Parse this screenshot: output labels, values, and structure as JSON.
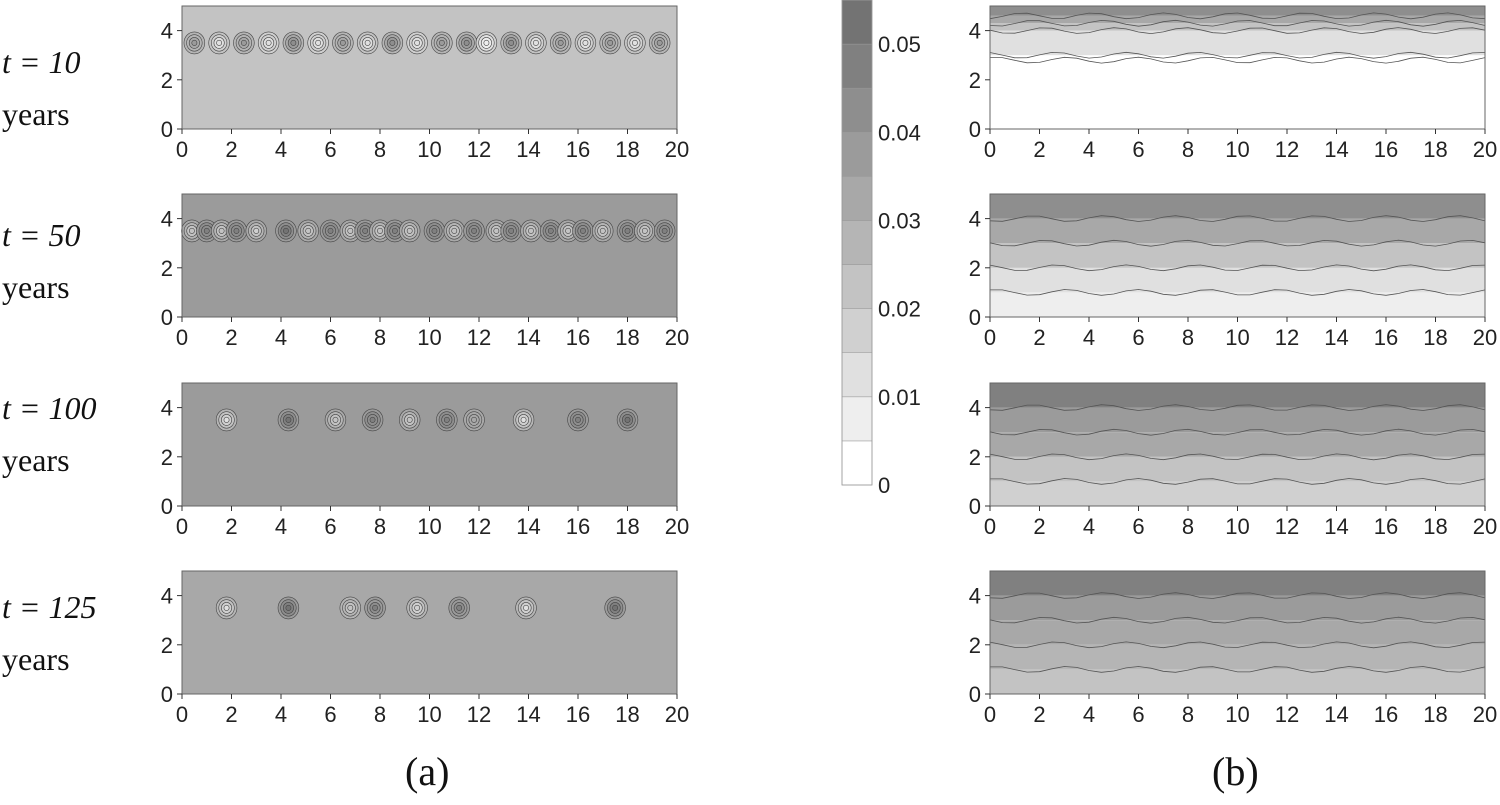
{
  "rows": [
    {
      "time_label": "t = 10",
      "unit_label": "years"
    },
    {
      "time_label": "t = 50",
      "unit_label": "years"
    },
    {
      "time_label": "t = 100",
      "unit_label": "years"
    },
    {
      "time_label": "t = 125",
      "unit_label": "years"
    }
  ],
  "panel_labels": {
    "a": "(a)",
    "b": "(b)"
  },
  "colorbar": {
    "tick_labels": [
      "0.05",
      "0.04",
      "0.03",
      "0.02",
      "0.01",
      "0"
    ],
    "levels": [
      0,
      0.005,
      0.01,
      0.015,
      0.02,
      0.025,
      0.03,
      0.035,
      0.04,
      0.045,
      0.05,
      0.055
    ],
    "colors": [
      "#ffffff",
      "#eeeeee",
      "#e0e0e0",
      "#d0d0d0",
      "#c3c3c3",
      "#b5b5b5",
      "#a8a8a8",
      "#9b9b9b",
      "#8e8e8e",
      "#808080",
      "#737373"
    ]
  },
  "chart_data": [
    {
      "type": "heatmap",
      "panel": "(a)",
      "row": "t = 10 years",
      "xlim": [
        0,
        20
      ],
      "ylim": [
        0,
        5
      ],
      "x_ticks": [
        "0",
        "2",
        "4",
        "6",
        "8",
        "10",
        "12",
        "14",
        "16",
        "18",
        "20"
      ],
      "y_ticks": [
        "0",
        "2",
        "4"
      ],
      "background_value": 0.023,
      "cells": [
        {
          "x": 0.5,
          "y": 3.5,
          "v": 0.035
        },
        {
          "x": 1.5,
          "y": 3.5,
          "v": 0.012
        },
        {
          "x": 2.5,
          "y": 3.5,
          "v": 0.035
        },
        {
          "x": 3.5,
          "y": 3.5,
          "v": 0.01
        },
        {
          "x": 4.5,
          "y": 3.5,
          "v": 0.04
        },
        {
          "x": 5.5,
          "y": 3.5,
          "v": 0.01
        },
        {
          "x": 6.5,
          "y": 3.5,
          "v": 0.035
        },
        {
          "x": 7.5,
          "y": 3.5,
          "v": 0.012
        },
        {
          "x": 8.5,
          "y": 3.5,
          "v": 0.04
        },
        {
          "x": 9.5,
          "y": 3.5,
          "v": 0.01
        },
        {
          "x": 10.5,
          "y": 3.5,
          "v": 0.035
        },
        {
          "x": 11.5,
          "y": 3.5,
          "v": 0.04
        },
        {
          "x": 12.3,
          "y": 3.5,
          "v": 0.005
        },
        {
          "x": 13.3,
          "y": 3.5,
          "v": 0.04
        },
        {
          "x": 14.3,
          "y": 3.5,
          "v": 0.012
        },
        {
          "x": 15.3,
          "y": 3.5,
          "v": 0.035
        },
        {
          "x": 16.3,
          "y": 3.5,
          "v": 0.012
        },
        {
          "x": 17.3,
          "y": 3.5,
          "v": 0.035
        },
        {
          "x": 18.3,
          "y": 3.5,
          "v": 0.012
        },
        {
          "x": 19.3,
          "y": 3.5,
          "v": 0.035
        }
      ]
    },
    {
      "type": "heatmap",
      "panel": "(a)",
      "row": "t = 50 years",
      "xlim": [
        0,
        20
      ],
      "ylim": [
        0,
        5
      ],
      "x_ticks": [
        "0",
        "2",
        "4",
        "6",
        "8",
        "10",
        "12",
        "14",
        "16",
        "18",
        "20"
      ],
      "y_ticks": [
        "0",
        "2",
        "4"
      ],
      "background_value": 0.035,
      "cells": [
        {
          "x": 0.4,
          "y": 3.5,
          "v": 0.02
        },
        {
          "x": 1.0,
          "y": 3.5,
          "v": 0.045
        },
        {
          "x": 1.6,
          "y": 3.5,
          "v": 0.02
        },
        {
          "x": 2.2,
          "y": 3.5,
          "v": 0.045
        },
        {
          "x": 3.0,
          "y": 3.5,
          "v": 0.015
        },
        {
          "x": 4.2,
          "y": 3.5,
          "v": 0.05
        },
        {
          "x": 5.1,
          "y": 3.5,
          "v": 0.02
        },
        {
          "x": 6.0,
          "y": 3.5,
          "v": 0.045
        },
        {
          "x": 6.8,
          "y": 3.5,
          "v": 0.02
        },
        {
          "x": 7.4,
          "y": 3.5,
          "v": 0.045
        },
        {
          "x": 8.0,
          "y": 3.5,
          "v": 0.02
        },
        {
          "x": 8.6,
          "y": 3.5,
          "v": 0.045
        },
        {
          "x": 9.2,
          "y": 3.5,
          "v": 0.02
        },
        {
          "x": 10.2,
          "y": 3.5,
          "v": 0.045
        },
        {
          "x": 11.0,
          "y": 3.5,
          "v": 0.02
        },
        {
          "x": 11.8,
          "y": 3.5,
          "v": 0.045
        },
        {
          "x": 12.7,
          "y": 3.5,
          "v": 0.02
        },
        {
          "x": 13.3,
          "y": 3.5,
          "v": 0.045
        },
        {
          "x": 14.1,
          "y": 3.5,
          "v": 0.02
        },
        {
          "x": 14.9,
          "y": 3.5,
          "v": 0.045
        },
        {
          "x": 15.6,
          "y": 3.5,
          "v": 0.02
        },
        {
          "x": 16.2,
          "y": 3.5,
          "v": 0.045
        },
        {
          "x": 17.0,
          "y": 3.5,
          "v": 0.02
        },
        {
          "x": 18.0,
          "y": 3.5,
          "v": 0.045
        },
        {
          "x": 18.7,
          "y": 3.5,
          "v": 0.02
        },
        {
          "x": 19.5,
          "y": 3.5,
          "v": 0.045
        }
      ]
    },
    {
      "type": "heatmap",
      "panel": "(a)",
      "row": "t = 100 years",
      "xlim": [
        0,
        20
      ],
      "ylim": [
        0,
        5
      ],
      "x_ticks": [
        "0",
        "2",
        "4",
        "6",
        "8",
        "10",
        "12",
        "14",
        "16",
        "18",
        "20"
      ],
      "y_ticks": [
        "0",
        "2",
        "4"
      ],
      "background_value": 0.035,
      "cells": [
        {
          "x": 1.8,
          "y": 3.5,
          "v": 0.012
        },
        {
          "x": 4.3,
          "y": 3.5,
          "v": 0.05
        },
        {
          "x": 6.2,
          "y": 3.5,
          "v": 0.02
        },
        {
          "x": 7.7,
          "y": 3.5,
          "v": 0.045
        },
        {
          "x": 9.2,
          "y": 3.5,
          "v": 0.02
        },
        {
          "x": 10.7,
          "y": 3.5,
          "v": 0.045
        },
        {
          "x": 11.8,
          "y": 3.5,
          "v": 0.03
        },
        {
          "x": 13.8,
          "y": 3.5,
          "v": 0.012
        },
        {
          "x": 16.0,
          "y": 3.5,
          "v": 0.045
        },
        {
          "x": 18.0,
          "y": 3.5,
          "v": 0.05
        }
      ]
    },
    {
      "type": "heatmap",
      "panel": "(a)",
      "row": "t = 125 years",
      "xlim": [
        0,
        20
      ],
      "ylim": [
        0,
        5
      ],
      "x_ticks": [
        "0",
        "2",
        "4",
        "6",
        "8",
        "10",
        "12",
        "14",
        "16",
        "18",
        "20"
      ],
      "y_ticks": [
        "0",
        "2",
        "4"
      ],
      "background_value": 0.033,
      "cells": [
        {
          "x": 1.8,
          "y": 3.5,
          "v": 0.012
        },
        {
          "x": 4.3,
          "y": 3.5,
          "v": 0.05
        },
        {
          "x": 6.8,
          "y": 3.5,
          "v": 0.02
        },
        {
          "x": 7.8,
          "y": 3.5,
          "v": 0.045
        },
        {
          "x": 9.5,
          "y": 3.5,
          "v": 0.015
        },
        {
          "x": 11.2,
          "y": 3.5,
          "v": 0.045
        },
        {
          "x": 13.9,
          "y": 3.5,
          "v": 0.012
        },
        {
          "x": 17.5,
          "y": 3.5,
          "v": 0.055
        }
      ]
    },
    {
      "type": "heatmap",
      "panel": "(b)",
      "row": "t = 10 years",
      "xlim": [
        0,
        20
      ],
      "ylim": [
        0,
        5
      ],
      "x_ticks": [
        "0",
        "2",
        "4",
        "6",
        "8",
        "10",
        "12",
        "14",
        "16",
        "18",
        "20"
      ],
      "y_ticks": [
        "0",
        "2",
        "4"
      ],
      "profile": [
        {
          "y": 0,
          "v": 0
        },
        {
          "y": 2.8,
          "v": 0
        },
        {
          "y": 3.0,
          "v": 0.01
        },
        {
          "y": 4.0,
          "v": 0.02
        },
        {
          "y": 4.3,
          "v": 0.03
        },
        {
          "y": 4.6,
          "v": 0.04
        },
        {
          "y": 5.0,
          "v": 0.055
        }
      ]
    },
    {
      "type": "heatmap",
      "panel": "(b)",
      "row": "t = 50 years",
      "xlim": [
        0,
        20
      ],
      "ylim": [
        0,
        5
      ],
      "x_ticks": [
        "0",
        "2",
        "4",
        "6",
        "8",
        "10",
        "12",
        "14",
        "16",
        "18",
        "20"
      ],
      "y_ticks": [
        "0",
        "2",
        "4"
      ],
      "profile": [
        {
          "y": 0,
          "v": 0.005
        },
        {
          "y": 1.0,
          "v": 0.01
        },
        {
          "y": 2.0,
          "v": 0.02
        },
        {
          "y": 3.0,
          "v": 0.03
        },
        {
          "y": 4.0,
          "v": 0.04
        },
        {
          "y": 5.0,
          "v": 0.055
        }
      ]
    },
    {
      "type": "heatmap",
      "panel": "(b)",
      "row": "t = 100 years",
      "xlim": [
        0,
        20
      ],
      "ylim": [
        0,
        5
      ],
      "x_ticks": [
        "0",
        "2",
        "4",
        "6",
        "8",
        "10",
        "12",
        "14",
        "16",
        "18",
        "20"
      ],
      "y_ticks": [
        "0",
        "2",
        "4"
      ],
      "profile": [
        {
          "y": 0,
          "v": 0.015
        },
        {
          "y": 1.0,
          "v": 0.02
        },
        {
          "y": 2.0,
          "v": 0.03
        },
        {
          "y": 3.0,
          "v": 0.035
        },
        {
          "y": 4.0,
          "v": 0.045
        },
        {
          "y": 5.0,
          "v": 0.055
        }
      ]
    },
    {
      "type": "heatmap",
      "panel": "(b)",
      "row": "t = 125 years",
      "xlim": [
        0,
        20
      ],
      "ylim": [
        0,
        5
      ],
      "x_ticks": [
        "0",
        "2",
        "4",
        "6",
        "8",
        "10",
        "12",
        "14",
        "16",
        "18",
        "20"
      ],
      "y_ticks": [
        "0",
        "2",
        "4"
      ],
      "profile": [
        {
          "y": 0,
          "v": 0.02
        },
        {
          "y": 1.0,
          "v": 0.025
        },
        {
          "y": 2.0,
          "v": 0.03
        },
        {
          "y": 3.0,
          "v": 0.035
        },
        {
          "y": 4.0,
          "v": 0.045
        },
        {
          "y": 5.0,
          "v": 0.055
        }
      ]
    }
  ]
}
